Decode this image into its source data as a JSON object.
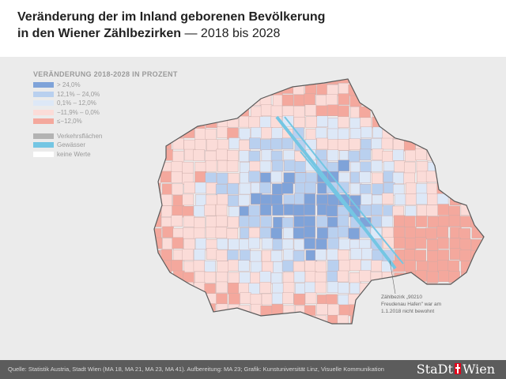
{
  "title": {
    "line1": "Veränderung der im Inland geborenen Bevölkerung",
    "line2_bold": "in den Wiener Zählbezirken",
    "line2_light": "— 2018 bis 2028"
  },
  "legend": {
    "title": "VERÄNDERUNG 2018-2028 IN PROZENT",
    "classes": [
      {
        "label": "> 24,0%",
        "color": "#7fa3d9"
      },
      {
        "label": "12,1% – 24,0%",
        "color": "#b9d0ef"
      },
      {
        "label": "0,1% – 12,0%",
        "color": "#dde8f7"
      },
      {
        "label": "−11,9% –   0,0%",
        "color": "#fbdcd8"
      },
      {
        "label": "≤−12,0%",
        "color": "#f4a89d"
      }
    ],
    "other": [
      {
        "label": "Verkehrsflächen",
        "color": "#b3b3b3"
      },
      {
        "label": "Gewässer",
        "color": "#74c6e3"
      },
      {
        "label": "keine Werte",
        "color": "#ffffff"
      }
    ]
  },
  "annotation": {
    "lines": [
      "Zählbezirk „90210",
      "Freudenau Hafen\" war am",
      "1.1.2018 nicht bewohnt"
    ]
  },
  "footer": {
    "source": "Quelle: Statistik Austria, Stadt Wien (MA 18, MA 21, MA 23, MA 41). Aufbereitung: MA 23; Grafik: Kunstuniversität Linz, Visuelle Kommunikation",
    "logo_left": "StaDt",
    "logo_right": "Wien"
  },
  "colors": {
    "border": "#5a5a5a",
    "background": "#ebebeb",
    "footer": "#5c5c5c"
  }
}
